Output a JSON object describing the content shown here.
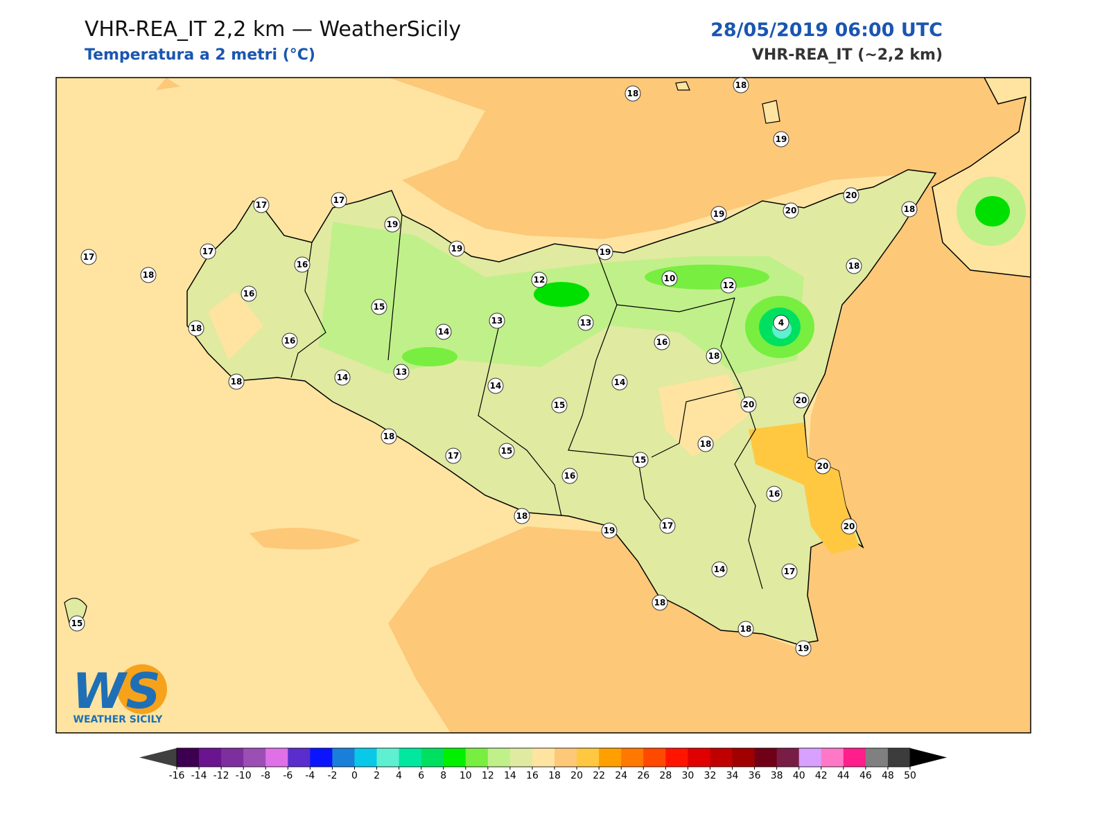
{
  "header": {
    "title": "VHR-REA_IT 2,2 km — WeatherSicily",
    "subtitle": "Temperatura a 2 metri (°C)",
    "date": "28/05/2019 06:00 UTC",
    "model": "VHR-REA_IT (~2,2 km)"
  },
  "stations": [
    18,
    18,
    19,
    17,
    17,
    19,
    19,
    17,
    17,
    18,
    16,
    16,
    15,
    18,
    16,
    18,
    14,
    13,
    14,
    13,
    12,
    13,
    19,
    10,
    12,
    19,
    20,
    20,
    18,
    18,
    4,
    16,
    18,
    20,
    20,
    14,
    15,
    14,
    18,
    17,
    15,
    16,
    15,
    18,
    20,
    16,
    20,
    18,
    19,
    17,
    14,
    17,
    18,
    18,
    19,
    15
  ],
  "colorbar": {
    "ticks": [
      -16,
      -14,
      -12,
      -10,
      -8,
      -6,
      -4,
      -2,
      0,
      2,
      4,
      6,
      8,
      10,
      12,
      14,
      16,
      18,
      20,
      22,
      24,
      26,
      28,
      30,
      32,
      34,
      36,
      38,
      40,
      42,
      44,
      46,
      48,
      50
    ],
    "colors": [
      "#3d0050",
      "#6a1490",
      "#7e2f9e",
      "#9b4fb5",
      "#e070e8",
      "#5a2ecc",
      "#0a14ff",
      "#1a7fd8",
      "#0ac8e8",
      "#5ef0d0",
      "#00e8a0",
      "#00e060",
      "#00f000",
      "#78ee40",
      "#c0f08a",
      "#e0eaa0",
      "#fee4a0",
      "#fdc878",
      "#ffc840",
      "#ffa000",
      "#ff7800",
      "#ff4800",
      "#ff1400",
      "#e00000",
      "#c00000",
      "#a00000",
      "#700018",
      "#781e46",
      "#d8a0ff",
      "#ff78c8",
      "#ff1e8c",
      "#808080",
      "#3c3c3c"
    ],
    "under_color": "#404040",
    "over_color": "#000000"
  },
  "logo": {
    "letters": "WS",
    "text": "WEATHER SICILY"
  }
}
